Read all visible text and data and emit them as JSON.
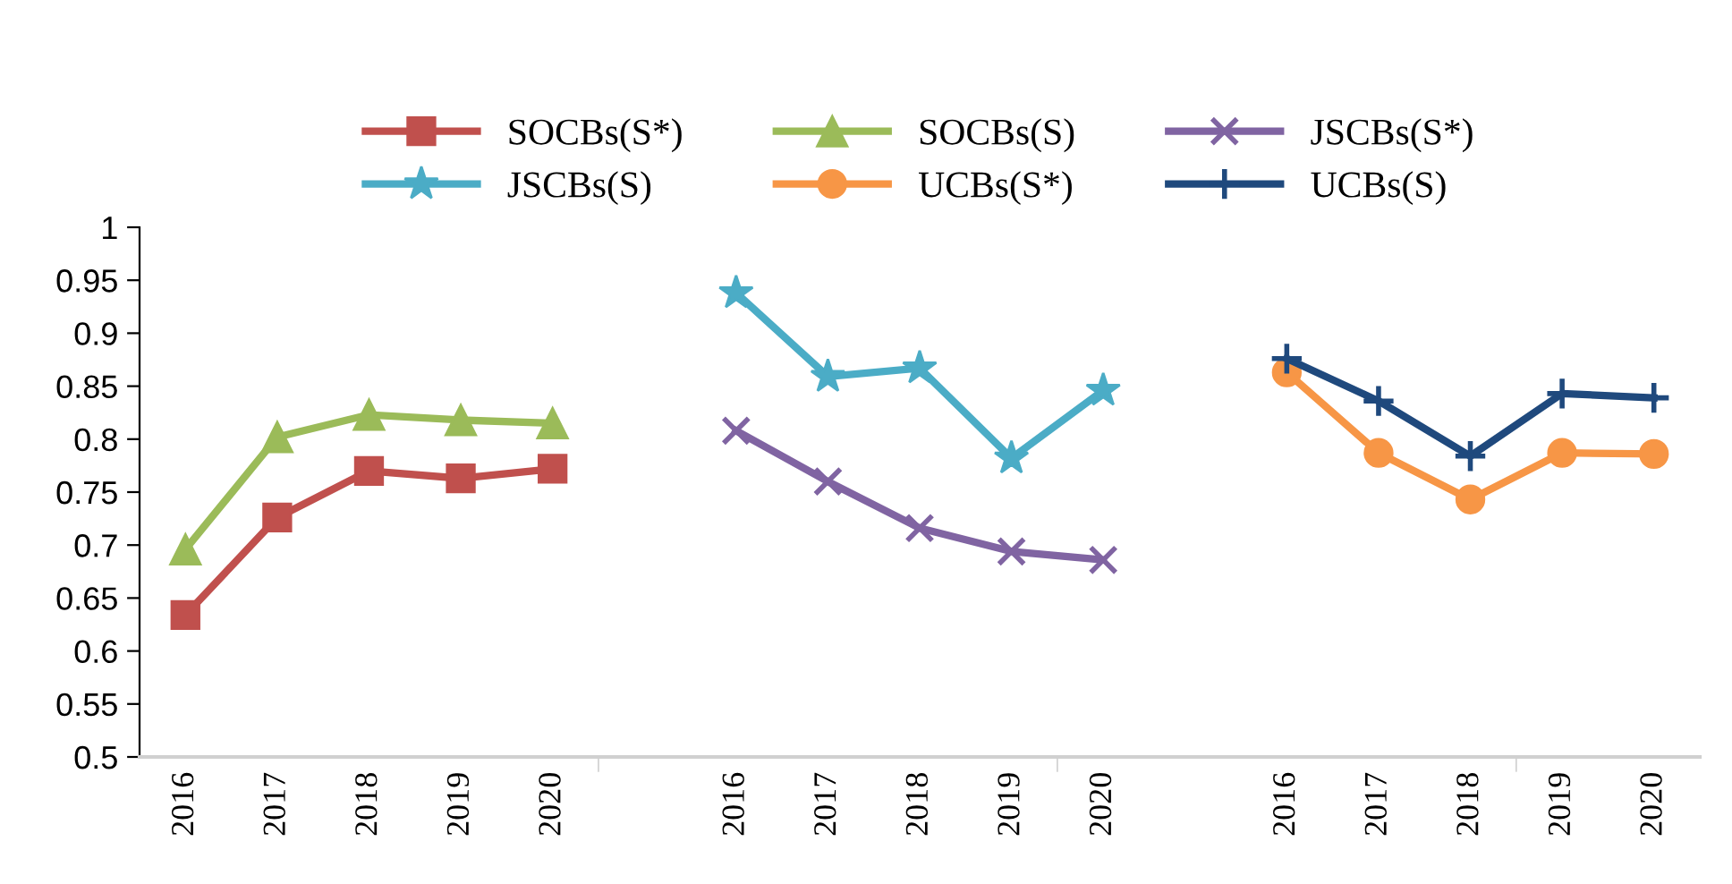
{
  "chart_data": {
    "type": "line",
    "categories": [
      "2016",
      "2017",
      "2018",
      "2019",
      "2020",
      null,
      "2016",
      "2017",
      "2018",
      "2019",
      "2020",
      null,
      "2016",
      "2017",
      "2018",
      "2019",
      "2020"
    ],
    "series": [
      {
        "name": "SOCBs(S*)",
        "color": "#c0504d",
        "marker": "square",
        "values": [
          0.634,
          0.726,
          0.77,
          0.763,
          0.772,
          null,
          null,
          null,
          null,
          null,
          null,
          null,
          null,
          null,
          null,
          null,
          null
        ]
      },
      {
        "name": "SOCBs(S)",
        "color": "#9bbb59",
        "marker": "triangle",
        "values": [
          0.696,
          0.802,
          0.823,
          0.818,
          0.815,
          null,
          null,
          null,
          null,
          null,
          null,
          null,
          null,
          null,
          null,
          null,
          null
        ]
      },
      {
        "name": "JSCBs(S*)",
        "color": "#8064a2",
        "marker": "cross",
        "values": [
          null,
          null,
          null,
          null,
          null,
          null,
          0.808,
          0.76,
          0.716,
          0.694,
          0.686,
          null,
          null,
          null,
          null,
          null,
          null
        ]
      },
      {
        "name": "JSCBs(S)",
        "color": "#4bacc6",
        "marker": "star",
        "values": [
          null,
          null,
          null,
          null,
          null,
          null,
          0.938,
          0.859,
          0.867,
          0.782,
          0.846,
          null,
          null,
          null,
          null,
          null,
          null
        ]
      },
      {
        "name": "UCBs(S*)",
        "color": "#f79646",
        "marker": "circle",
        "values": [
          null,
          null,
          null,
          null,
          null,
          null,
          null,
          null,
          null,
          null,
          null,
          null,
          0.863,
          0.787,
          0.743,
          0.787,
          0.786
        ]
      },
      {
        "name": "UCBs(S)",
        "color": "#1f497d",
        "marker": "plus",
        "values": [
          null,
          null,
          null,
          null,
          null,
          null,
          null,
          null,
          null,
          null,
          null,
          null,
          0.876,
          0.836,
          0.784,
          0.843,
          0.839
        ]
      }
    ],
    "ylim": [
      0.5,
      1
    ],
    "yticks": [
      0.5,
      0.55,
      0.6,
      0.65,
      0.7,
      0.75,
      0.8,
      0.85,
      0.9,
      0.95,
      1
    ],
    "grid": false,
    "legend": "top",
    "line_style": "solid"
  }
}
